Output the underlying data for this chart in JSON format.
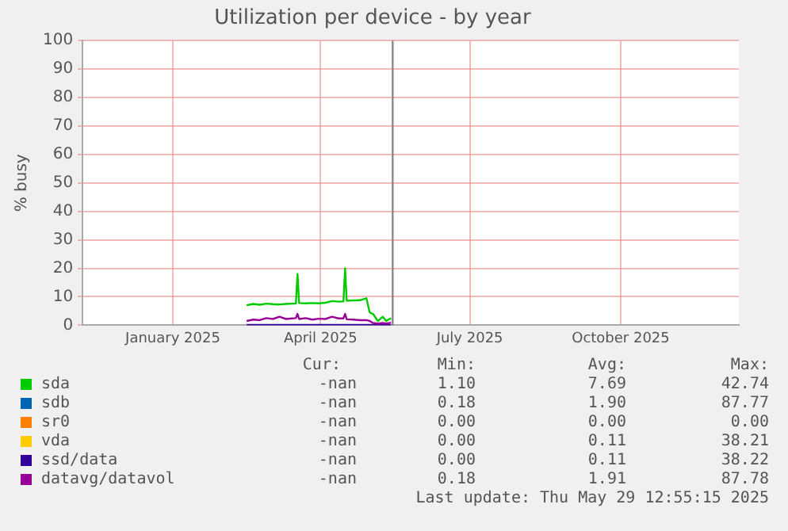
{
  "chart_data": {
    "type": "line",
    "title": "Utilization per device - by year",
    "ylabel": "% busy",
    "x": [
      "2025-03-01",
      "2025-03-05",
      "2025-03-09",
      "2025-03-13",
      "2025-03-17",
      "2025-03-21",
      "2025-03-25",
      "2025-03-29",
      "2025-03-31",
      "2025-04-01",
      "2025-04-02",
      "2025-04-06",
      "2025-04-10",
      "2025-04-14",
      "2025-04-18",
      "2025-04-22",
      "2025-04-26",
      "2025-04-29",
      "2025-04-30",
      "2025-05-01",
      "2025-05-05",
      "2025-05-09",
      "2025-05-13",
      "2025-05-15",
      "2025-05-17",
      "2025-05-20",
      "2025-05-23",
      "2025-05-25",
      "2025-05-28"
    ],
    "series": [
      {
        "name": "sda",
        "color": "#00cc00",
        "values": [
          7,
          7.5,
          7.2,
          7.6,
          7.4,
          7.3,
          7.5,
          7.6,
          7.6,
          18,
          7.8,
          7.7,
          7.8,
          7.7,
          7.9,
          8.5,
          8.3,
          8.4,
          20,
          8.6,
          8.7,
          8.8,
          9.5,
          4.5,
          4,
          1.5,
          3,
          1.5,
          2.5
        ]
      },
      {
        "name": "sdb",
        "color": "#0066b3",
        "values": [
          null,
          null,
          null,
          null,
          null,
          null,
          null,
          null,
          null,
          null,
          null,
          null,
          null,
          null,
          null,
          null,
          null,
          null,
          null,
          null,
          null,
          null,
          null,
          null,
          null,
          null,
          null,
          null,
          null
        ]
      },
      {
        "name": "sr0",
        "color": "#ff8000",
        "values": [
          null,
          null,
          null,
          null,
          null,
          null,
          null,
          null,
          null,
          null,
          null,
          null,
          null,
          null,
          null,
          null,
          null,
          null,
          null,
          null,
          null,
          null,
          null,
          null,
          null,
          null,
          null,
          null,
          null
        ]
      },
      {
        "name": "vda",
        "color": "#ffcc00",
        "values": [
          null,
          null,
          null,
          null,
          null,
          null,
          null,
          null,
          null,
          null,
          null,
          null,
          null,
          null,
          null,
          null,
          null,
          null,
          null,
          null,
          null,
          null,
          null,
          null,
          null,
          null,
          null,
          null,
          null
        ]
      },
      {
        "name": "ssd/data",
        "color": "#330099",
        "values": [
          0.1,
          0.1,
          0.1,
          0.1,
          0.1,
          0.1,
          0.1,
          0.1,
          0.1,
          0.1,
          0.1,
          0.1,
          0.1,
          0.1,
          0.1,
          0.1,
          0.1,
          0.1,
          0.1,
          0.1,
          0.1,
          0.1,
          0.1,
          0.1,
          0.1,
          0.1,
          0.1,
          0.1,
          0.1
        ]
      },
      {
        "name": "datavg/datavol",
        "color": "#990099",
        "values": [
          1.5,
          2,
          1.8,
          2.5,
          2.2,
          3,
          2.2,
          2.4,
          2.5,
          4,
          2.2,
          2.5,
          2,
          2.3,
          2.2,
          3,
          2.4,
          2.4,
          4,
          2.1,
          2,
          1.8,
          1.8,
          1.5,
          0.8,
          0.6,
          0.8,
          0.6,
          0.9
        ]
      }
    ],
    "xlim": [
      "2024-11-21",
      "2025-12-26"
    ],
    "xticks": [
      {
        "value": "2025-01-15",
        "label": "January 2025"
      },
      {
        "value": "2025-04-15",
        "label": "April 2025"
      },
      {
        "value": "2025-07-15",
        "label": "July 2025"
      },
      {
        "value": "2025-10-15",
        "label": "October 2025"
      }
    ],
    "ylim": [
      0,
      100
    ],
    "yticks": [
      0,
      10,
      20,
      30,
      40,
      50,
      60,
      70,
      80,
      90,
      100
    ],
    "ref_lines": [
      {
        "axis": "x",
        "value": "2025-05-29",
        "color": "#888888"
      }
    ],
    "grid": true,
    "legend": "bottom",
    "marker": "none",
    "line_style": "solid",
    "annotations": [
      "Cur:",
      "Min:",
      "Avg:",
      "Max:",
      "-nan",
      "1.10",
      "7.69",
      "42.74",
      "-nan",
      "0.18",
      "1.90",
      "87.77",
      "-nan",
      "0.00",
      "0.00",
      "0.00",
      "-nan",
      "0.00",
      "0.11",
      "38.21",
      "-nan",
      "0.00",
      "0.11",
      "38.22",
      "-nan",
      "0.18",
      "1.91",
      "87.78",
      "Last update: Thu May 29 12:55:15 2025"
    ]
  }
}
